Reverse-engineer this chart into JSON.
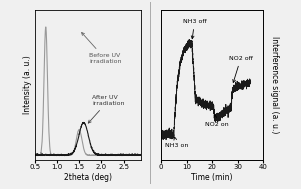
{
  "fig_width": 3.01,
  "fig_height": 1.89,
  "dpi": 100,
  "bg_color": "#f0f0f0",
  "panel1": {
    "xlabel": "2theta (deg)",
    "ylabel": "Intensity (a. u.)",
    "xlim": [
      0.5,
      2.9
    ],
    "xticks": [
      0.5,
      1.0,
      1.5,
      2.0,
      2.5
    ],
    "label_before": "Before UV\nirradiation",
    "label_after": "After UV\nirradiation",
    "before_color": "#999999",
    "after_color": "#1a1a1a"
  },
  "panel2": {
    "xlabel": "Time (min)",
    "ylabel": "Interference signal (a. u.)",
    "xlim": [
      0,
      40
    ],
    "xticks": [
      0,
      10,
      20,
      30,
      40
    ],
    "label_nh3on": "NH3 on",
    "label_nh3off": "NH3 off",
    "label_no2on": "NO2 on",
    "label_no2off": "NO2 off",
    "line_color": "#1a1a1a"
  }
}
